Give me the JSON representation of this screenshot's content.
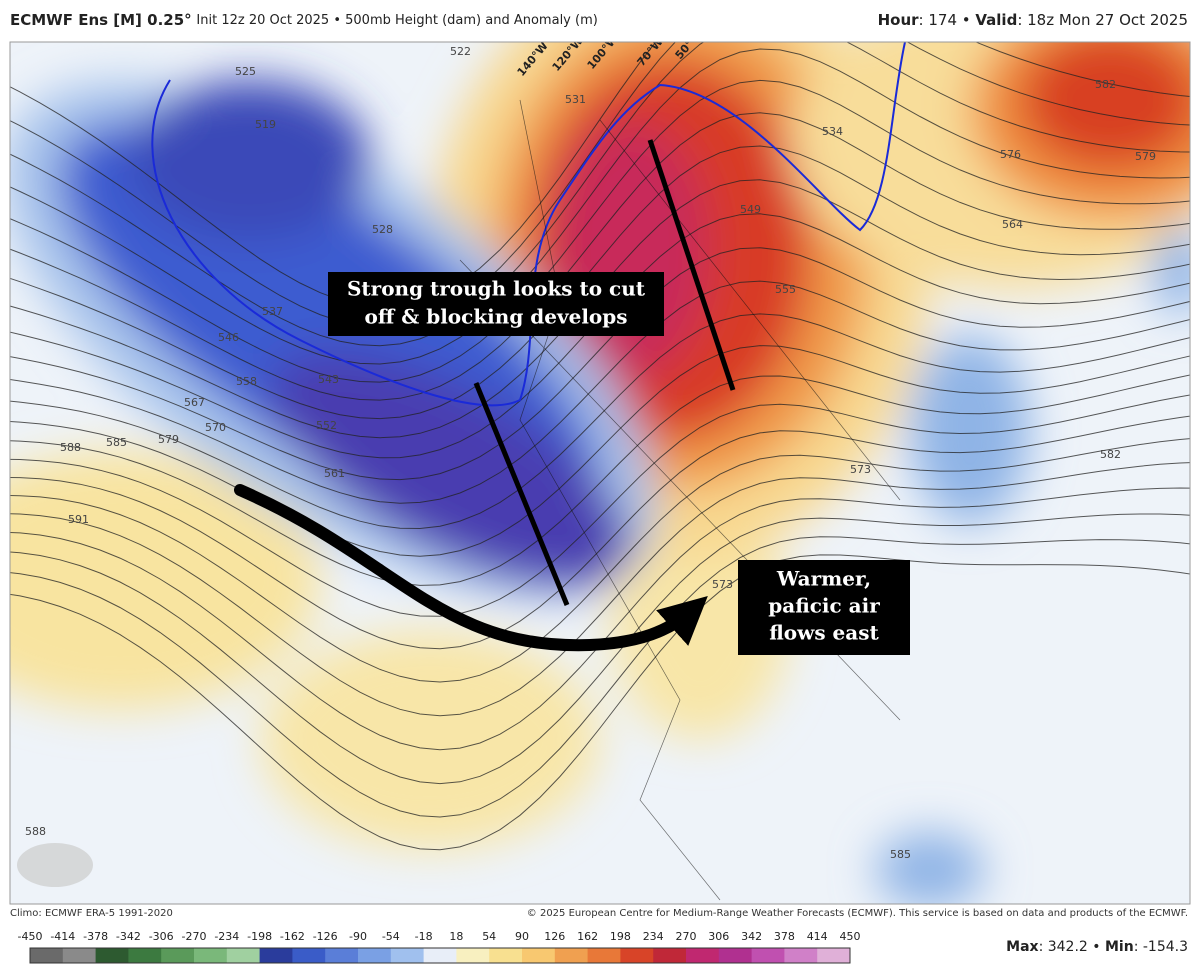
{
  "header": {
    "title": "ECMWF Ens [M] 0.25°",
    "subtitle": "Init 12z 20 Oct 2025 • 500mb Height (dam) and Anomaly (m)",
    "hour_label": "Hour",
    "hour_value": ": 174 • ",
    "valid_label": "Valid",
    "valid_value": ": 18z Mon 27 Oct 2025"
  },
  "map": {
    "longitudes": [
      "140°W",
      "120°W",
      "100°W",
      "70°W",
      "50°W"
    ],
    "contour_labels": [
      "519",
      "525",
      "537",
      "546",
      "543",
      "552",
      "558",
      "567",
      "570",
      "561",
      "579",
      "585",
      "588",
      "591",
      "528",
      "522",
      "531",
      "534",
      "549",
      "555",
      "573",
      "576",
      "564",
      "582",
      "579",
      "582",
      "588",
      "585",
      "573"
    ]
  },
  "annotations": {
    "trough": [
      "Strong trough looks to cut",
      "off & blocking develops"
    ],
    "warm": [
      "Warmer,",
      "paficic air",
      "flows east"
    ]
  },
  "footer": {
    "climo": "Climo: ECMWF ERA-5 1991-2020",
    "copyright": "© 2025 European Centre for Medium-Range Weather Forecasts (ECMWF). This service is based on data and products of the ECMWF.",
    "colorbar_ticks": [
      -450,
      -414,
      -378,
      -342,
      -306,
      -270,
      -234,
      -198,
      -162,
      -126,
      -90,
      -54,
      -18,
      18,
      54,
      90,
      126,
      162,
      198,
      234,
      270,
      306,
      342,
      378,
      414,
      450
    ],
    "max_label": "Max",
    "max_value": ": 342.2 • ",
    "min_label": "Min",
    "min_value": ": -154.3"
  }
}
